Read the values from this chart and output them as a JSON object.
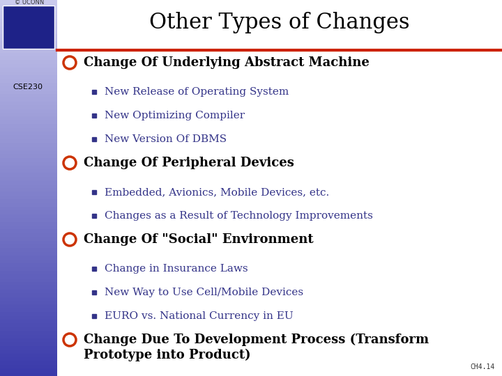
{
  "title": "Other Types of Changes",
  "title_fontsize": 22,
  "title_color": "#000000",
  "title_font": "serif",
  "background_color": "#ffffff",
  "left_bar_top_color": "#3a3aaa",
  "left_bar_bottom_color": "#ccccee",
  "header_line_color": "#cc2200",
  "bullet_color": "#cc3300",
  "sub_bullet_color": "#333388",
  "main_text_color": "#000000",
  "label_cse230": "CSE230",
  "footer_text": "CH4.14",
  "items": [
    {
      "text": "Change Of Underlying Abstract Machine",
      "subitems": [
        "New Release of Operating System",
        "New Optimizing Compiler",
        "New Version Of DBMS"
      ]
    },
    {
      "text": "Change Of Peripheral Devices",
      "subitems": [
        "Embedded, Avionics, Mobile Devices, etc.",
        "Changes as a Result of Technology Improvements"
      ]
    },
    {
      "text": "Change Of \"Social\" Environment",
      "subitems": [
        "Change in Insurance Laws",
        "New Way to Use Cell/Mobile Devices",
        "EURO vs. National Currency in EU"
      ]
    },
    {
      "text": "Change Due To Development Process (Transform\nPrototype into Product)",
      "subitems": []
    }
  ]
}
